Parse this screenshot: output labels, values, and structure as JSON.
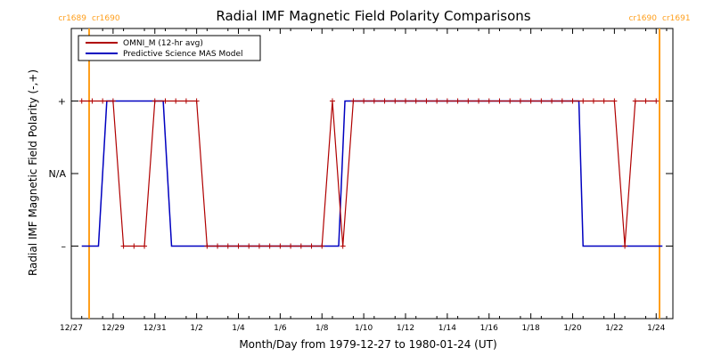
{
  "chart_data": {
    "type": "line",
    "title": "Radial IMF Magnetic Field Polarity Comparisons",
    "xlabel": "Month/Day from 1979-12-27 to 1980-01-24 (UT)",
    "ylabel": "Radial IMF Magnetic Field Polarity (-,+)",
    "xlim": [
      0,
      28.8
    ],
    "ylim": [
      -2,
      2
    ],
    "x_ticks": [
      {
        "x": 0,
        "label": "12/27"
      },
      {
        "x": 2,
        "label": "12/29"
      },
      {
        "x": 4,
        "label": "12/31"
      },
      {
        "x": 6,
        "label": "1/2"
      },
      {
        "x": 8,
        "label": "1/4"
      },
      {
        "x": 10,
        "label": "1/6"
      },
      {
        "x": 12,
        "label": "1/8"
      },
      {
        "x": 14,
        "label": "1/10"
      },
      {
        "x": 16,
        "label": "1/12"
      },
      {
        "x": 18,
        "label": "1/14"
      },
      {
        "x": 20,
        "label": "1/16"
      },
      {
        "x": 22,
        "label": "1/18"
      },
      {
        "x": 24,
        "label": "1/20"
      },
      {
        "x": 26,
        "label": "1/22"
      },
      {
        "x": 28,
        "label": "1/24"
      }
    ],
    "y_ticks": [
      {
        "y": 1,
        "label": "+"
      },
      {
        "y": 0,
        "label": "N/A"
      },
      {
        "y": -1,
        "label": "–"
      }
    ],
    "carrington_markers": [
      {
        "x": 1.2,
        "left_label": "cr1689",
        "right_label": "cr1690"
      },
      {
        "x": 30.0,
        "left_label": "cr1690",
        "right_label": "cr1691"
      }
    ],
    "legend_position": "top-left",
    "colors": {
      "omni": "#b00000",
      "mas": "#0000c0",
      "carrington": "#ff9f1c",
      "axes": "#000000"
    },
    "series": [
      {
        "name": "OMNI_M (12-hr avg)",
        "x": [
          0.5,
          1.0,
          1.5,
          2.0,
          2.5,
          3.0,
          3.5,
          4.0,
          4.5,
          5.0,
          5.5,
          6.0,
          6.5,
          7.0,
          7.5,
          8.0,
          8.5,
          9.0,
          9.5,
          10.0,
          10.5,
          11.0,
          11.5,
          12.0,
          12.5,
          13.0,
          13.5,
          14.0,
          14.5,
          15.0,
          15.5,
          16.0,
          16.5,
          17.0,
          17.5,
          18.0,
          18.5,
          19.0,
          19.5,
          20.0,
          20.5,
          21.0,
          21.5,
          22.0,
          22.5,
          23.0,
          23.5,
          24.0,
          24.5,
          25.0,
          25.5,
          26.0,
          26.5,
          27.0,
          27.5,
          28.0
        ],
        "y": [
          1,
          1,
          1,
          1,
          -1,
          -1,
          -1,
          1,
          1,
          1,
          1,
          1,
          -1,
          -1,
          -1,
          -1,
          -1,
          -1,
          -1,
          -1,
          -1,
          -1,
          -1,
          -1,
          1,
          -1,
          1,
          1,
          1,
          1,
          1,
          1,
          1,
          1,
          1,
          1,
          1,
          1,
          1,
          1,
          1,
          1,
          1,
          1,
          1,
          1,
          1,
          1,
          1,
          1,
          1,
          1,
          -1,
          1,
          1,
          1
        ]
      },
      {
        "name": "Predictive Science MAS Model",
        "x": [
          0.5,
          1.3,
          1.7,
          4.4,
          4.8,
          12.8,
          13.1,
          24.3,
          24.5,
          28.3
        ],
        "y": [
          -1,
          -1,
          1,
          1,
          -1,
          -1,
          1,
          1,
          -1,
          -1
        ]
      }
    ]
  }
}
